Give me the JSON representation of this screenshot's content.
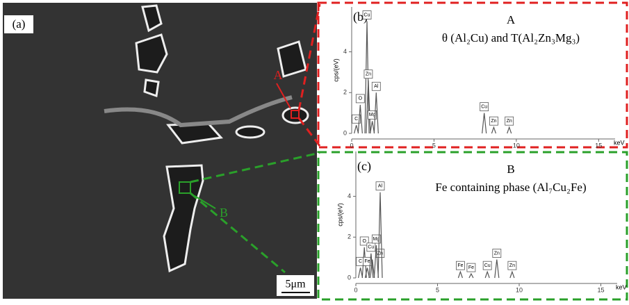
{
  "panel_a": {
    "panel_label": "(a)",
    "marker_a": "A",
    "marker_b": "B",
    "scale_bar": "5μm"
  },
  "chart_data": [
    {
      "type": "spectrum",
      "panel_label": "(b)",
      "title": "A",
      "subtitle": "θ (Al₂Cu) and T(Al₂Zn₃Mg₃)",
      "y_label": "cps/(eV)",
      "x_label": "keV",
      "xlim": [
        0,
        16
      ],
      "ylim": [
        0,
        6.2
      ],
      "xticks": [
        0,
        5,
        10,
        15
      ],
      "yticks": [
        0,
        2,
        4
      ],
      "color": "#555555",
      "border_color": "#e02020",
      "x": [
        0.28,
        0.52,
        0.93,
        1.01,
        1.25,
        1.49,
        8.05,
        8.63,
        9.57
      ],
      "values": [
        0.4,
        1.4,
        5.5,
        2.6,
        0.6,
        2.0,
        1.0,
        0.3,
        0.3
      ],
      "peak_labels": [
        "C",
        "O",
        "Cu",
        "Zn",
        "Mg",
        "Al",
        "Cu",
        "Zn",
        "Zn"
      ]
    },
    {
      "type": "spectrum",
      "panel_label": "(c)",
      "title": "B",
      "subtitle": "Fe containing phase (Al₇Cu₂Fe)",
      "y_label": "cps/(eV)",
      "x_label": "keV",
      "xlim": [
        0,
        16
      ],
      "ylim": [
        0,
        6.2
      ],
      "xticks": [
        0,
        5,
        10,
        15
      ],
      "yticks": [
        0,
        2,
        4
      ],
      "color": "#555555",
      "border_color": "#2aa02a",
      "x": [
        0.28,
        0.52,
        0.7,
        0.93,
        1.01,
        1.25,
        1.49,
        6.4,
        7.06,
        8.05,
        8.63,
        9.57
      ],
      "values": [
        0.5,
        1.5,
        0.5,
        1.2,
        0.9,
        1.6,
        4.2,
        0.3,
        0.2,
        0.3,
        0.9,
        0.3
      ],
      "peak_labels": [
        "C",
        "O",
        "Fe",
        "Cu",
        "Zn",
        "Mg",
        "Al",
        "Fe",
        "Fe",
        "Cu",
        "Zn",
        "Zn"
      ]
    }
  ]
}
